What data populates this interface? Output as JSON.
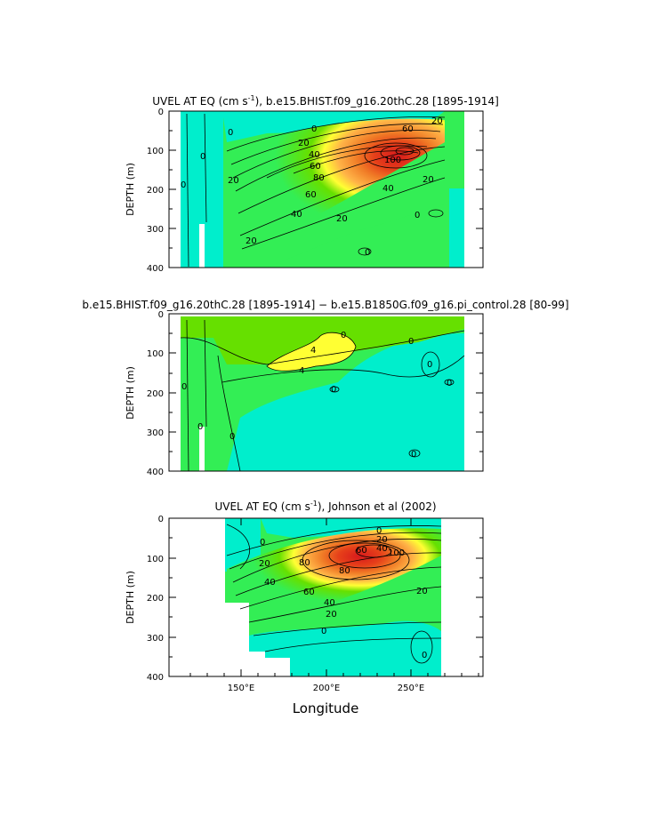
{
  "chart_data": [
    {
      "type": "contour",
      "title": "UVEL AT EQ (cm s",
      "title_sup": "-1",
      "title_tail": "), b.e15.BHIST.f09_g16.20thC.28  [1895-1914]",
      "ylabel": "DEPTH (m)",
      "xlim": [
        105,
        290
      ],
      "ylim": [
        400,
        0
      ],
      "yticks": [
        0,
        100,
        200,
        300,
        400
      ],
      "xticks": [],
      "xlabel": "",
      "contour_labels": [
        "0",
        "20",
        "20",
        "40",
        "60",
        "80",
        "100",
        "60",
        "40",
        "20",
        "20",
        "20",
        "60",
        "40",
        "20",
        "0",
        "0",
        "0",
        "0",
        "0"
      ],
      "core": {
        "lon": 235,
        "depth": 120,
        "max": 110
      }
    },
    {
      "type": "contour",
      "title": "b.e15.BHIST.f09_g16.20thC.28  [1895-1914]  −  b.e15.B1850G.f09_g16.pi_control.28  [80-99]",
      "ylabel": "DEPTH (m)",
      "xlim": [
        105,
        290
      ],
      "ylim": [
        400,
        0
      ],
      "yticks": [
        0,
        100,
        200,
        300,
        400
      ],
      "xticks": [],
      "xlabel": "",
      "contour_labels": [
        "4",
        "4",
        "0",
        "0",
        "0",
        "0",
        "0",
        "0",
        "0",
        "0",
        "0"
      ],
      "core": {
        "lon": 210,
        "depth": 115,
        "max": 5
      }
    },
    {
      "type": "contour",
      "title": "UVEL AT EQ (cm s",
      "title_sup": "-1",
      "title_tail": "), Johnson et al (2002)",
      "ylabel": "DEPTH (m)",
      "xlim": [
        105,
        290
      ],
      "ylim": [
        400,
        0
      ],
      "yticks": [
        0,
        100,
        200,
        300,
        400
      ],
      "xticks": [
        "150°E",
        "200°E",
        "250°E"
      ],
      "xtick_values": [
        150,
        200,
        250
      ],
      "xlabel": "Longitude",
      "contour_labels": [
        "0",
        "20",
        "20",
        "40",
        "60",
        "80",
        "100",
        "80",
        "60",
        "40",
        "20",
        "40",
        "20",
        "0",
        "0",
        "0"
      ],
      "core": {
        "lon": 225,
        "depth": 110,
        "max": 100
      }
    }
  ]
}
